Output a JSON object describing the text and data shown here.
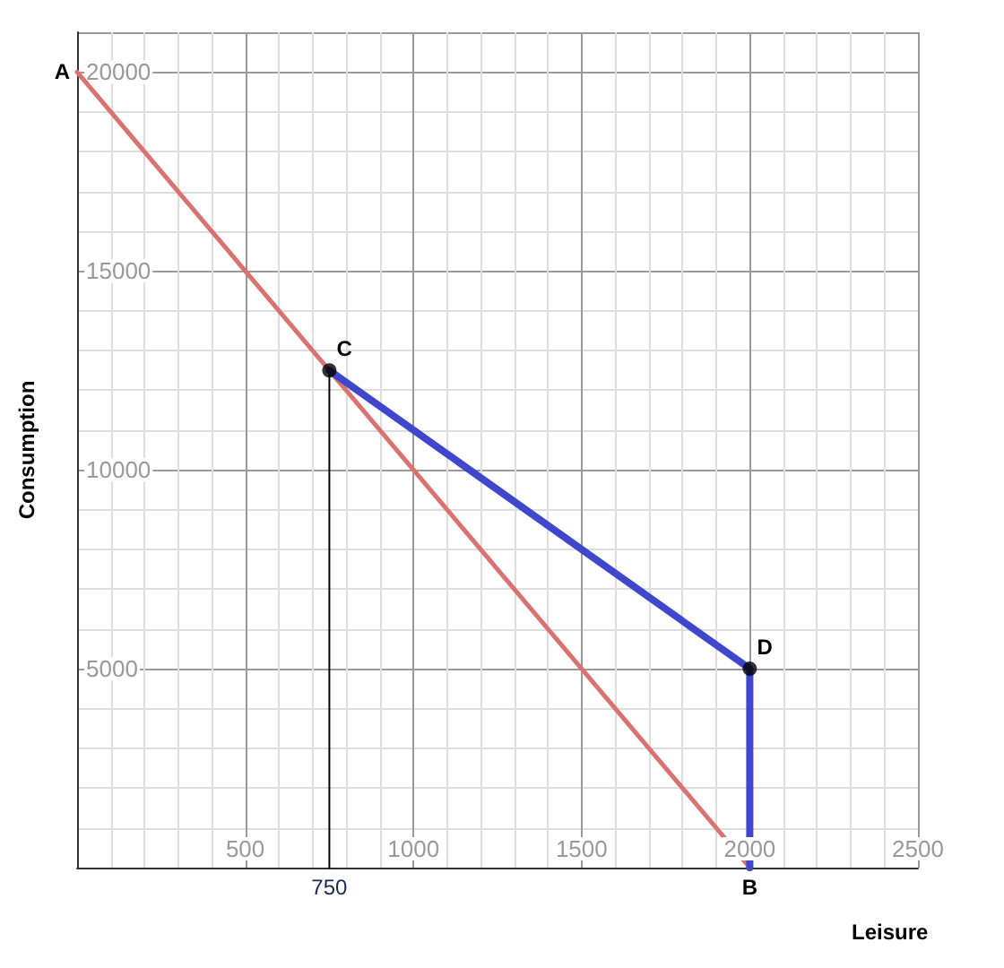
{
  "chart_data": {
    "type": "line",
    "xlabel": "Leisure",
    "ylabel": "Consumption",
    "xlim": [
      0,
      2500
    ],
    "ylim": [
      0,
      21000
    ],
    "xticks": [
      500,
      1000,
      1500,
      2000,
      2500
    ],
    "yticks": [
      5000,
      10000,
      15000,
      20000
    ],
    "grid": true,
    "marker": "none",
    "line_style": "solid",
    "series": [
      {
        "color": "#d9736f",
        "x": [
          0,
          2000
        ],
        "values": [
          20000,
          0
        ]
      },
      {
        "color": "#000000",
        "x": [
          750,
          750
        ],
        "values": [
          0,
          12500
        ]
      },
      {
        "color": "#3f48cc",
        "x": [
          750,
          2000,
          2000
        ],
        "values": [
          12500,
          5000,
          0
        ]
      },
      {
        "type": "scatter",
        "marker": "circle",
        "color": "#000000",
        "x": [
          750,
          2000
        ],
        "values": [
          12500,
          5000
        ]
      }
    ],
    "annotations": [
      {
        "text": "A",
        "x": 0,
        "y": 20000
      },
      {
        "text": "B",
        "x": 2000,
        "y": 0
      },
      {
        "text": "C",
        "x": 750,
        "y": 12500
      },
      {
        "text": "D",
        "x": 2000,
        "y": 5000
      },
      {
        "text": "750",
        "x": 750,
        "y": 0
      }
    ]
  }
}
